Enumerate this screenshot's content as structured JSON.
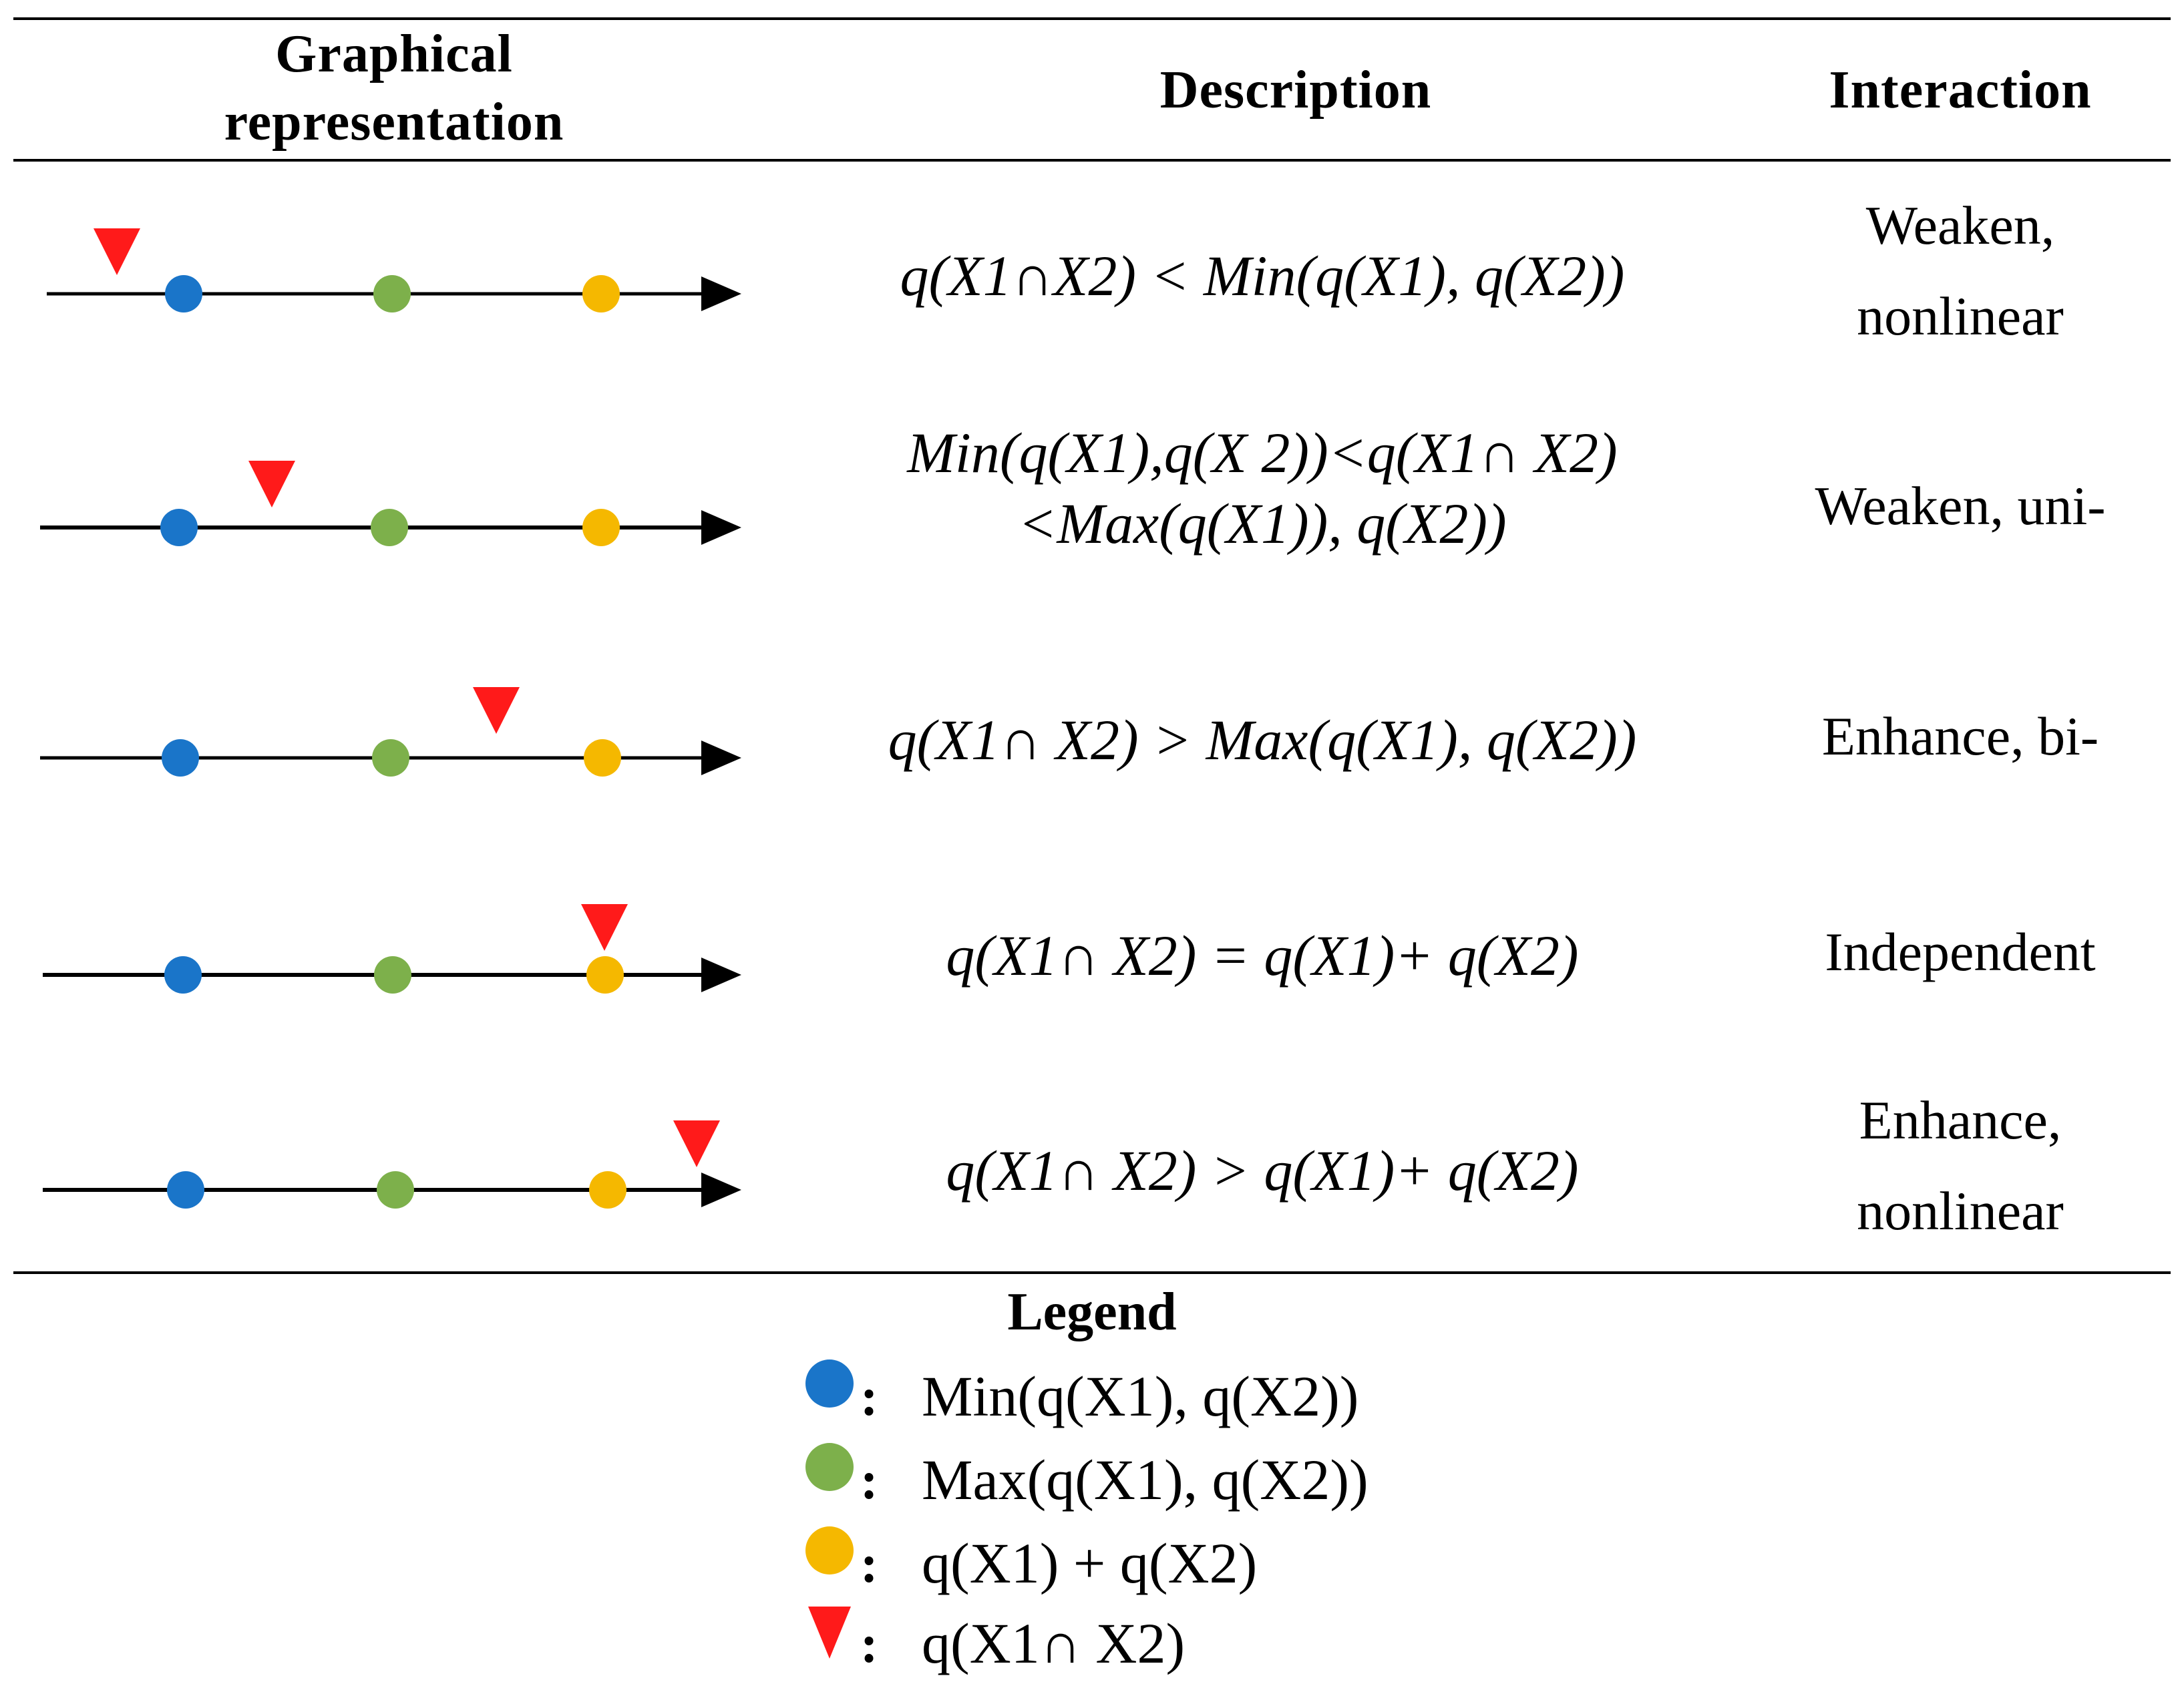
{
  "headers": {
    "graphical": "Graphical representation",
    "description": "Description",
    "interaction": "Interaction"
  },
  "rows": [
    {
      "description": "q(X1∩X2) < Min(q(X1), q(X2))",
      "interaction": "Weaken, nonlinear",
      "triangle_position": "left of Min"
    },
    {
      "description": "Min(q(X1),q(X 2))<q(X1∩ X2) <Max(q(X1)), q(X2))",
      "interaction": "Weaken, uni-",
      "triangle_position": "between Min and Max"
    },
    {
      "description": "q(X1∩ X2) > Max(q(X1), q(X2))",
      "interaction": "Enhance, bi-",
      "triangle_position": "between Max and Sum"
    },
    {
      "description": "q(X1∩ X2) = q(X1)+ q(X2)",
      "interaction": "Independent",
      "triangle_position": "at Sum"
    },
    {
      "description": "q(X1∩ X2) > q(X1)+ q(X2)",
      "interaction": "Enhance, nonlinear",
      "triangle_position": "right of Sum"
    }
  ],
  "legend": {
    "title": "Legend",
    "items": [
      {
        "marker": "blue-dot",
        "colon": ":",
        "label": "Min(q(X1), q(X2))"
      },
      {
        "marker": "green-dot",
        "colon": ":",
        "label": "Max(q(X1), q(X2))"
      },
      {
        "marker": "orange-dot",
        "colon": ":",
        "label": "q(X1) + q(X2)"
      },
      {
        "marker": "red-triangle",
        "colon": ":",
        "label": "q(X1∩ X2)"
      }
    ]
  },
  "colors": {
    "min": "#1a75c9",
    "max": "#7db04b",
    "sum": "#f5b800",
    "intersection": "#ff1a1a",
    "axis": "#000000"
  }
}
